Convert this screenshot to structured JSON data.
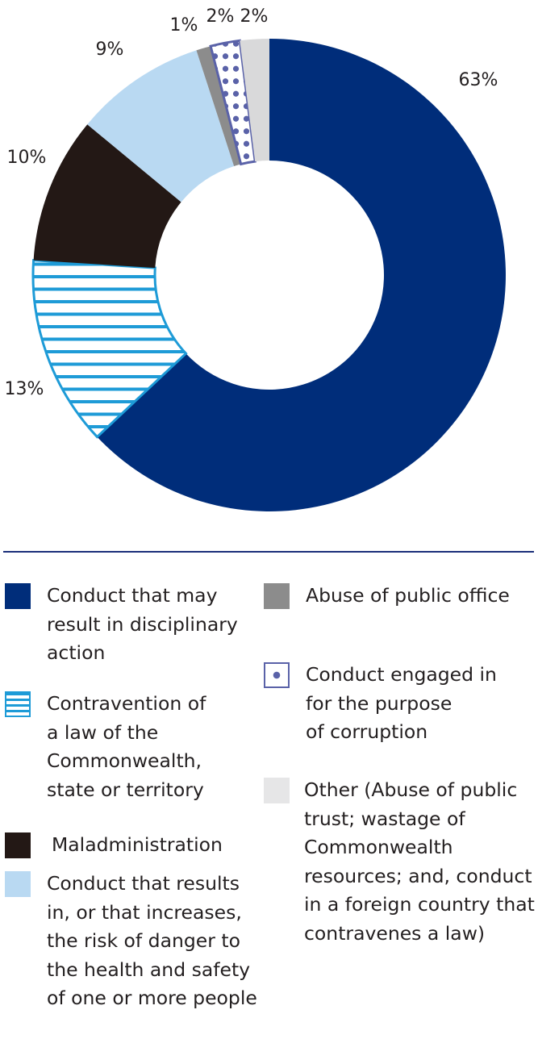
{
  "chart_data": {
    "type": "pie",
    "title": "",
    "donut": true,
    "slices": [
      {
        "label": "Conduct that may result in disciplinary action",
        "value": 63,
        "display": "63%",
        "color": "#002d7a",
        "pattern": "solid"
      },
      {
        "label": "Contravention of a law of the Commonwealth, state or territory",
        "value": 13,
        "display": "13%",
        "color": "#1e9bd7",
        "pattern": "stripes"
      },
      {
        "label": "Maladministration",
        "value": 10,
        "display": "10%",
        "color": "#231815",
        "pattern": "solid"
      },
      {
        "label": "Conduct that results in, or that increases, the risk of danger to the health and safety of one or more people",
        "value": 9,
        "display": "9%",
        "color": "#b9d9f2",
        "pattern": "solid"
      },
      {
        "label": "Abuse of public office",
        "value": 1,
        "display": "1%",
        "color": "#8c8c8c",
        "pattern": "solid"
      },
      {
        "label": "Conduct engaged in for the purpose of corruption",
        "value": 2,
        "display": "2%",
        "color": "#5a62a8",
        "pattern": "dots"
      },
      {
        "label": "Other (Abuse of public trust; wastage of Commonwealth resources; and, conduct in a foreign country that contravenes a law)",
        "value": 2,
        "display": "2%",
        "color": "#d9d9da",
        "pattern": "solid"
      }
    ]
  },
  "legend": {
    "items": [
      {
        "text": "Conduct that may\nresult in disciplinary\naction"
      },
      {
        "text": "Contravention of\na law of the\nCommonwealth,\nstate or territory"
      },
      {
        "text": "Maladministration"
      },
      {
        "text": "Conduct that results\nin, or that increases,\nthe risk of danger to\nthe health and safety\nof one or more people"
      },
      {
        "text": "Abuse of public office"
      },
      {
        "text": "Conduct engaged in\nfor the purpose\nof corruption"
      },
      {
        "text": "Other (Abuse of public\ntrust; wastage of\nCommonwealth\nresources; and, conduct\nin a foreign country that\ncontravenes a law)"
      }
    ]
  }
}
